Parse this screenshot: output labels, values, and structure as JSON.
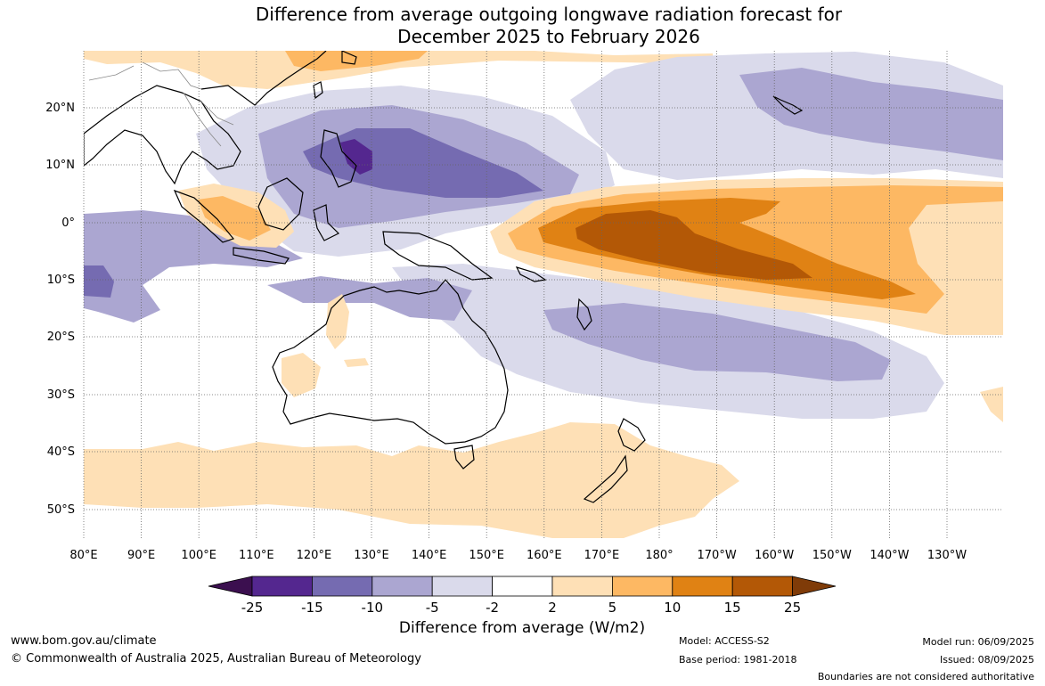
{
  "title": {
    "line1": "Difference from average outgoing longwave radiation forecast for",
    "line2": "December 2025 to February 2026"
  },
  "map": {
    "lat_labels": [
      "20°N",
      "10°N",
      "0°",
      "10°S",
      "20°S",
      "30°S",
      "40°S",
      "50°S"
    ],
    "lon_labels": [
      "80°E",
      "90°E",
      "100°E",
      "110°E",
      "120°E",
      "130°E",
      "140°E",
      "150°E",
      "160°E",
      "170°E",
      "180°",
      "170°W",
      "160°W",
      "150°W",
      "140°W",
      "130°W"
    ],
    "region": "Western Pacific / Australia",
    "grid": true
  },
  "colorbar": {
    "title": "Difference from average (W/m2)",
    "ticks": [
      "-25",
      "-15",
      "-10",
      "-5",
      "-2",
      "2",
      "5",
      "10",
      "15",
      "25"
    ],
    "colors": [
      "#3b0f4f",
      "#54278f",
      "#756bb1",
      "#aba6d1",
      "#dadaeb",
      "#ffffff",
      "#fee0b6",
      "#fdb863",
      "#e08214",
      "#b35806",
      "#7f3b08"
    ]
  },
  "footer": {
    "website": "www.bom.gov.au/climate",
    "copyright": "© Commonwealth of Australia 2025, Australian Bureau of Meteorology",
    "model": "Model: ACCESS-S2",
    "base_period": "Base period: 1981-2018",
    "model_run": "Model run: 06/09/2025",
    "issued": "Issued: 08/09/2025",
    "disclaimer": "Boundaries are not considered authoritative"
  }
}
